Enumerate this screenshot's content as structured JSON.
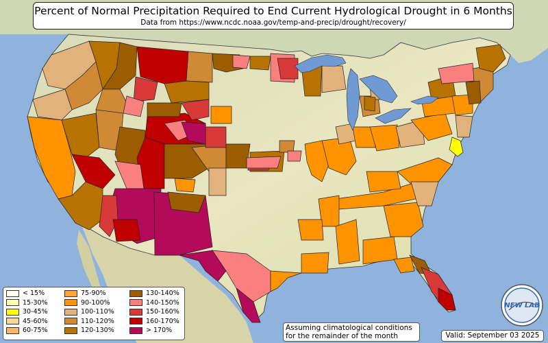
{
  "title": "Percent of Normal Precipitation Required to End Current Hydrological Drought in 6 Months",
  "subtitle": "Data from https://www.ncdc.noaa.gov/temp-and-precip/drought/recovery/",
  "legend": {
    "items": [
      {
        "label": "< 15%",
        "color": "#ffffee"
      },
      {
        "label": "15-30%",
        "color": "#ffffb2"
      },
      {
        "label": "30-45%",
        "color": "#ffff00"
      },
      {
        "label": "45-60%",
        "color": "#f5d6a0"
      },
      {
        "label": "60-75%",
        "color": "#f7b76b"
      },
      {
        "label": "75-90%",
        "color": "#fca53d"
      },
      {
        "label": "90-100%",
        "color": "#ff9400"
      },
      {
        "label": "100-110%",
        "color": "#e2b27c"
      },
      {
        "label": "110-120%",
        "color": "#d08a36"
      },
      {
        "label": "120-130%",
        "color": "#b87200"
      },
      {
        "label": "130-140%",
        "color": "#9c5c00"
      },
      {
        "label": "140-150%",
        "color": "#fa8080"
      },
      {
        "label": "150-160%",
        "color": "#d83a3a"
      },
      {
        "label": "160-170%",
        "color": "#c00000"
      },
      {
        "label": "> 170%",
        "color": "#b40a5a"
      }
    ]
  },
  "note": {
    "line1": "Assuming climatological conditions",
    "line2": "for the remainder of the month"
  },
  "valid": "Valid: September 03 2025",
  "logo": {
    "text": "NEW LAB"
  },
  "colors": {
    "ocean": "#8fb3dd",
    "land": "#e8e6bf",
    "foreign_land": "#d6d8ba",
    "lakes": "#6f9ad4"
  }
}
